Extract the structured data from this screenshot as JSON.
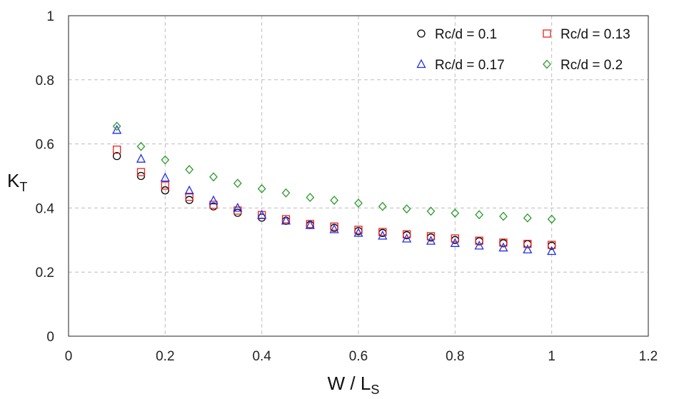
{
  "chart_data": {
    "type": "scatter",
    "xlabel": "W / L",
    "xlabel_sub": "S",
    "ylabel": "K",
    "ylabel_sub": "T",
    "xlim": [
      0,
      1.2
    ],
    "ylim": [
      0,
      1
    ],
    "xticks": [
      "0",
      "0.2",
      "0.4",
      "0.6",
      "0.8",
      "1",
      "1.2"
    ],
    "yticks": [
      "0",
      "0.2",
      "0.4",
      "0.6",
      "0.8",
      "1"
    ],
    "grid": true,
    "legend_position": "top-right",
    "x": [
      0.1,
      0.15,
      0.2,
      0.25,
      0.3,
      0.35,
      0.4,
      0.45,
      0.5,
      0.55,
      0.6,
      0.65,
      0.7,
      0.75,
      0.8,
      0.85,
      0.9,
      0.95,
      1.0
    ],
    "series": [
      {
        "name": "Rc/d = 0.1",
        "marker": "circle",
        "color": "#000000",
        "values": [
          0.562,
          0.5,
          0.455,
          0.425,
          0.405,
          0.385,
          0.37,
          0.36,
          0.347,
          0.338,
          0.328,
          0.322,
          0.315,
          0.308,
          0.3,
          0.296,
          0.29,
          0.287,
          0.282
        ]
      },
      {
        "name": "Rc/d = 0.13",
        "marker": "square",
        "color": "#e8231f",
        "values": [
          0.582,
          0.512,
          0.47,
          0.435,
          0.41,
          0.392,
          0.378,
          0.365,
          0.35,
          0.342,
          0.332,
          0.325,
          0.318,
          0.312,
          0.305,
          0.298,
          0.292,
          0.288,
          0.285
        ]
      },
      {
        "name": "Rc/d = 0.17",
        "marker": "triangle",
        "color": "#1f2ee8",
        "values": [
          0.643,
          0.553,
          0.494,
          0.454,
          0.423,
          0.4,
          0.378,
          0.36,
          0.346,
          0.333,
          0.322,
          0.313,
          0.304,
          0.297,
          0.29,
          0.282,
          0.276,
          0.27,
          0.265
        ]
      },
      {
        "name": "Rc/d = 0.2",
        "marker": "diamond",
        "color": "#2a9a2a",
        "values": [
          0.655,
          0.592,
          0.55,
          0.52,
          0.497,
          0.477,
          0.46,
          0.447,
          0.433,
          0.424,
          0.415,
          0.405,
          0.397,
          0.39,
          0.384,
          0.379,
          0.374,
          0.369,
          0.365
        ]
      }
    ]
  }
}
